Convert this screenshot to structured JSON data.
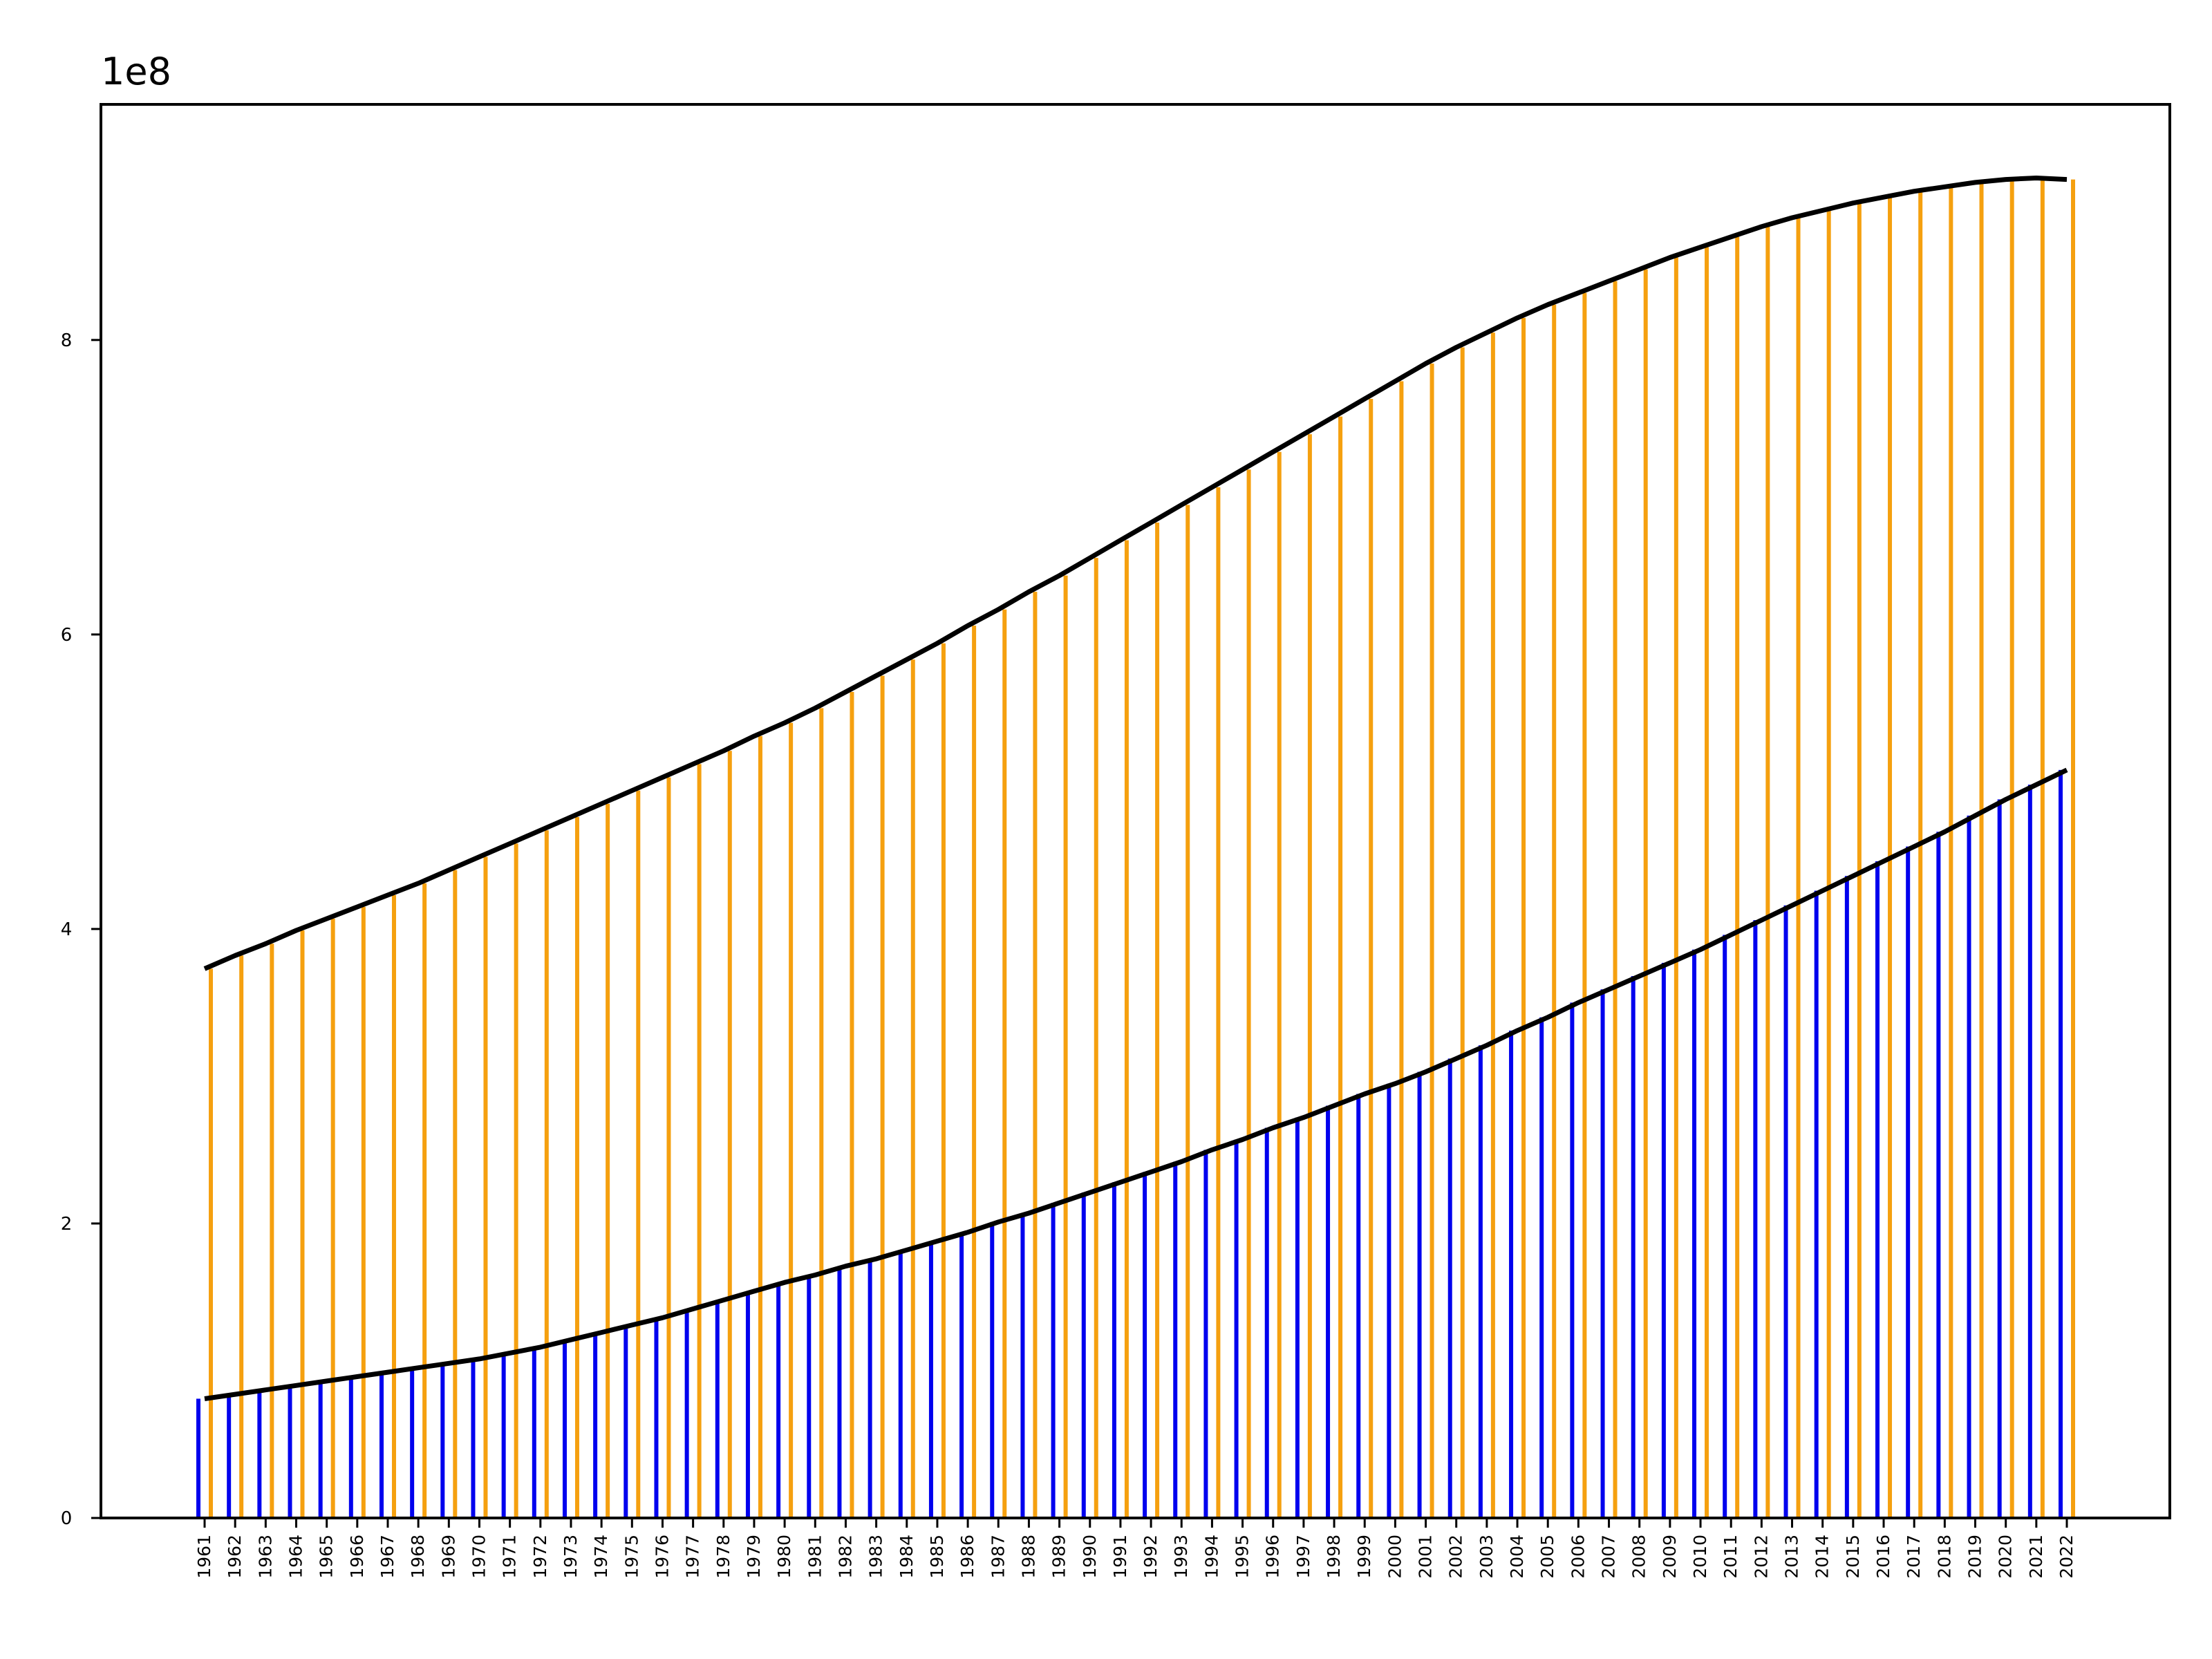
{
  "chart_data": {
    "type": "bar",
    "offset_text": "1e8",
    "scale": 100000000,
    "ylim": [
      0,
      9.6
    ],
    "yticks": [
      0,
      2,
      4,
      6,
      8
    ],
    "grid": false,
    "legend": "none",
    "colors": {
      "blue": "#0000ee",
      "orange": "#f5a00f",
      "line": "#000000"
    },
    "categories": [
      "1961",
      "1962",
      "1963",
      "1964",
      "1965",
      "1966",
      "1967",
      "1968",
      "1969",
      "1970",
      "1971",
      "1972",
      "1973",
      "1974",
      "1975",
      "1976",
      "1977",
      "1978",
      "1979",
      "1980",
      "1981",
      "1982",
      "1983",
      "1984",
      "1985",
      "1986",
      "1987",
      "1988",
      "1989",
      "1990",
      "1991",
      "1992",
      "1993",
      "1994",
      "1995",
      "1996",
      "1997",
      "1998",
      "1999",
      "2000",
      "2001",
      "2002",
      "2003",
      "2004",
      "2005",
      "2006",
      "2007",
      "2008",
      "2009",
      "2010",
      "2011",
      "2012",
      "2013",
      "2014",
      "2015",
      "2016",
      "2017",
      "2018",
      "2019",
      "2020",
      "2021",
      "2022"
    ],
    "series": [
      {
        "color": "blue",
        "values": [
          0.81,
          0.84,
          0.87,
          0.9,
          0.93,
          0.96,
          0.99,
          1.02,
          1.05,
          1.08,
          1.12,
          1.16,
          1.21,
          1.26,
          1.31,
          1.36,
          1.42,
          1.48,
          1.54,
          1.6,
          1.65,
          1.71,
          1.76,
          1.82,
          1.88,
          1.94,
          2.01,
          2.07,
          2.14,
          2.21,
          2.28,
          2.35,
          2.42,
          2.5,
          2.57,
          2.65,
          2.72,
          2.8,
          2.88,
          2.95,
          3.03,
          3.12,
          3.21,
          3.31,
          3.4,
          3.5,
          3.59,
          3.68,
          3.77,
          3.86,
          3.96,
          4.06,
          4.16,
          4.26,
          4.36,
          4.46,
          4.56,
          4.66,
          4.77,
          4.88,
          4.98,
          5.08
        ]
      },
      {
        "color": "orange",
        "values": [
          3.73,
          3.82,
          3.9,
          3.99,
          4.07,
          4.15,
          4.23,
          4.31,
          4.4,
          4.49,
          4.58,
          4.67,
          4.76,
          4.85,
          4.94,
          5.03,
          5.12,
          5.21,
          5.31,
          5.4,
          5.5,
          5.61,
          5.72,
          5.83,
          5.94,
          6.06,
          6.17,
          6.29,
          6.4,
          6.52,
          6.64,
          6.76,
          6.88,
          7.0,
          7.12,
          7.24,
          7.36,
          7.48,
          7.6,
          7.72,
          7.84,
          7.95,
          8.05,
          8.15,
          8.24,
          8.32,
          8.4,
          8.48,
          8.56,
          8.63,
          8.7,
          8.77,
          8.83,
          8.88,
          8.93,
          8.97,
          9.01,
          9.04,
          9.07,
          9.09,
          9.1,
          9.09
        ]
      }
    ]
  }
}
